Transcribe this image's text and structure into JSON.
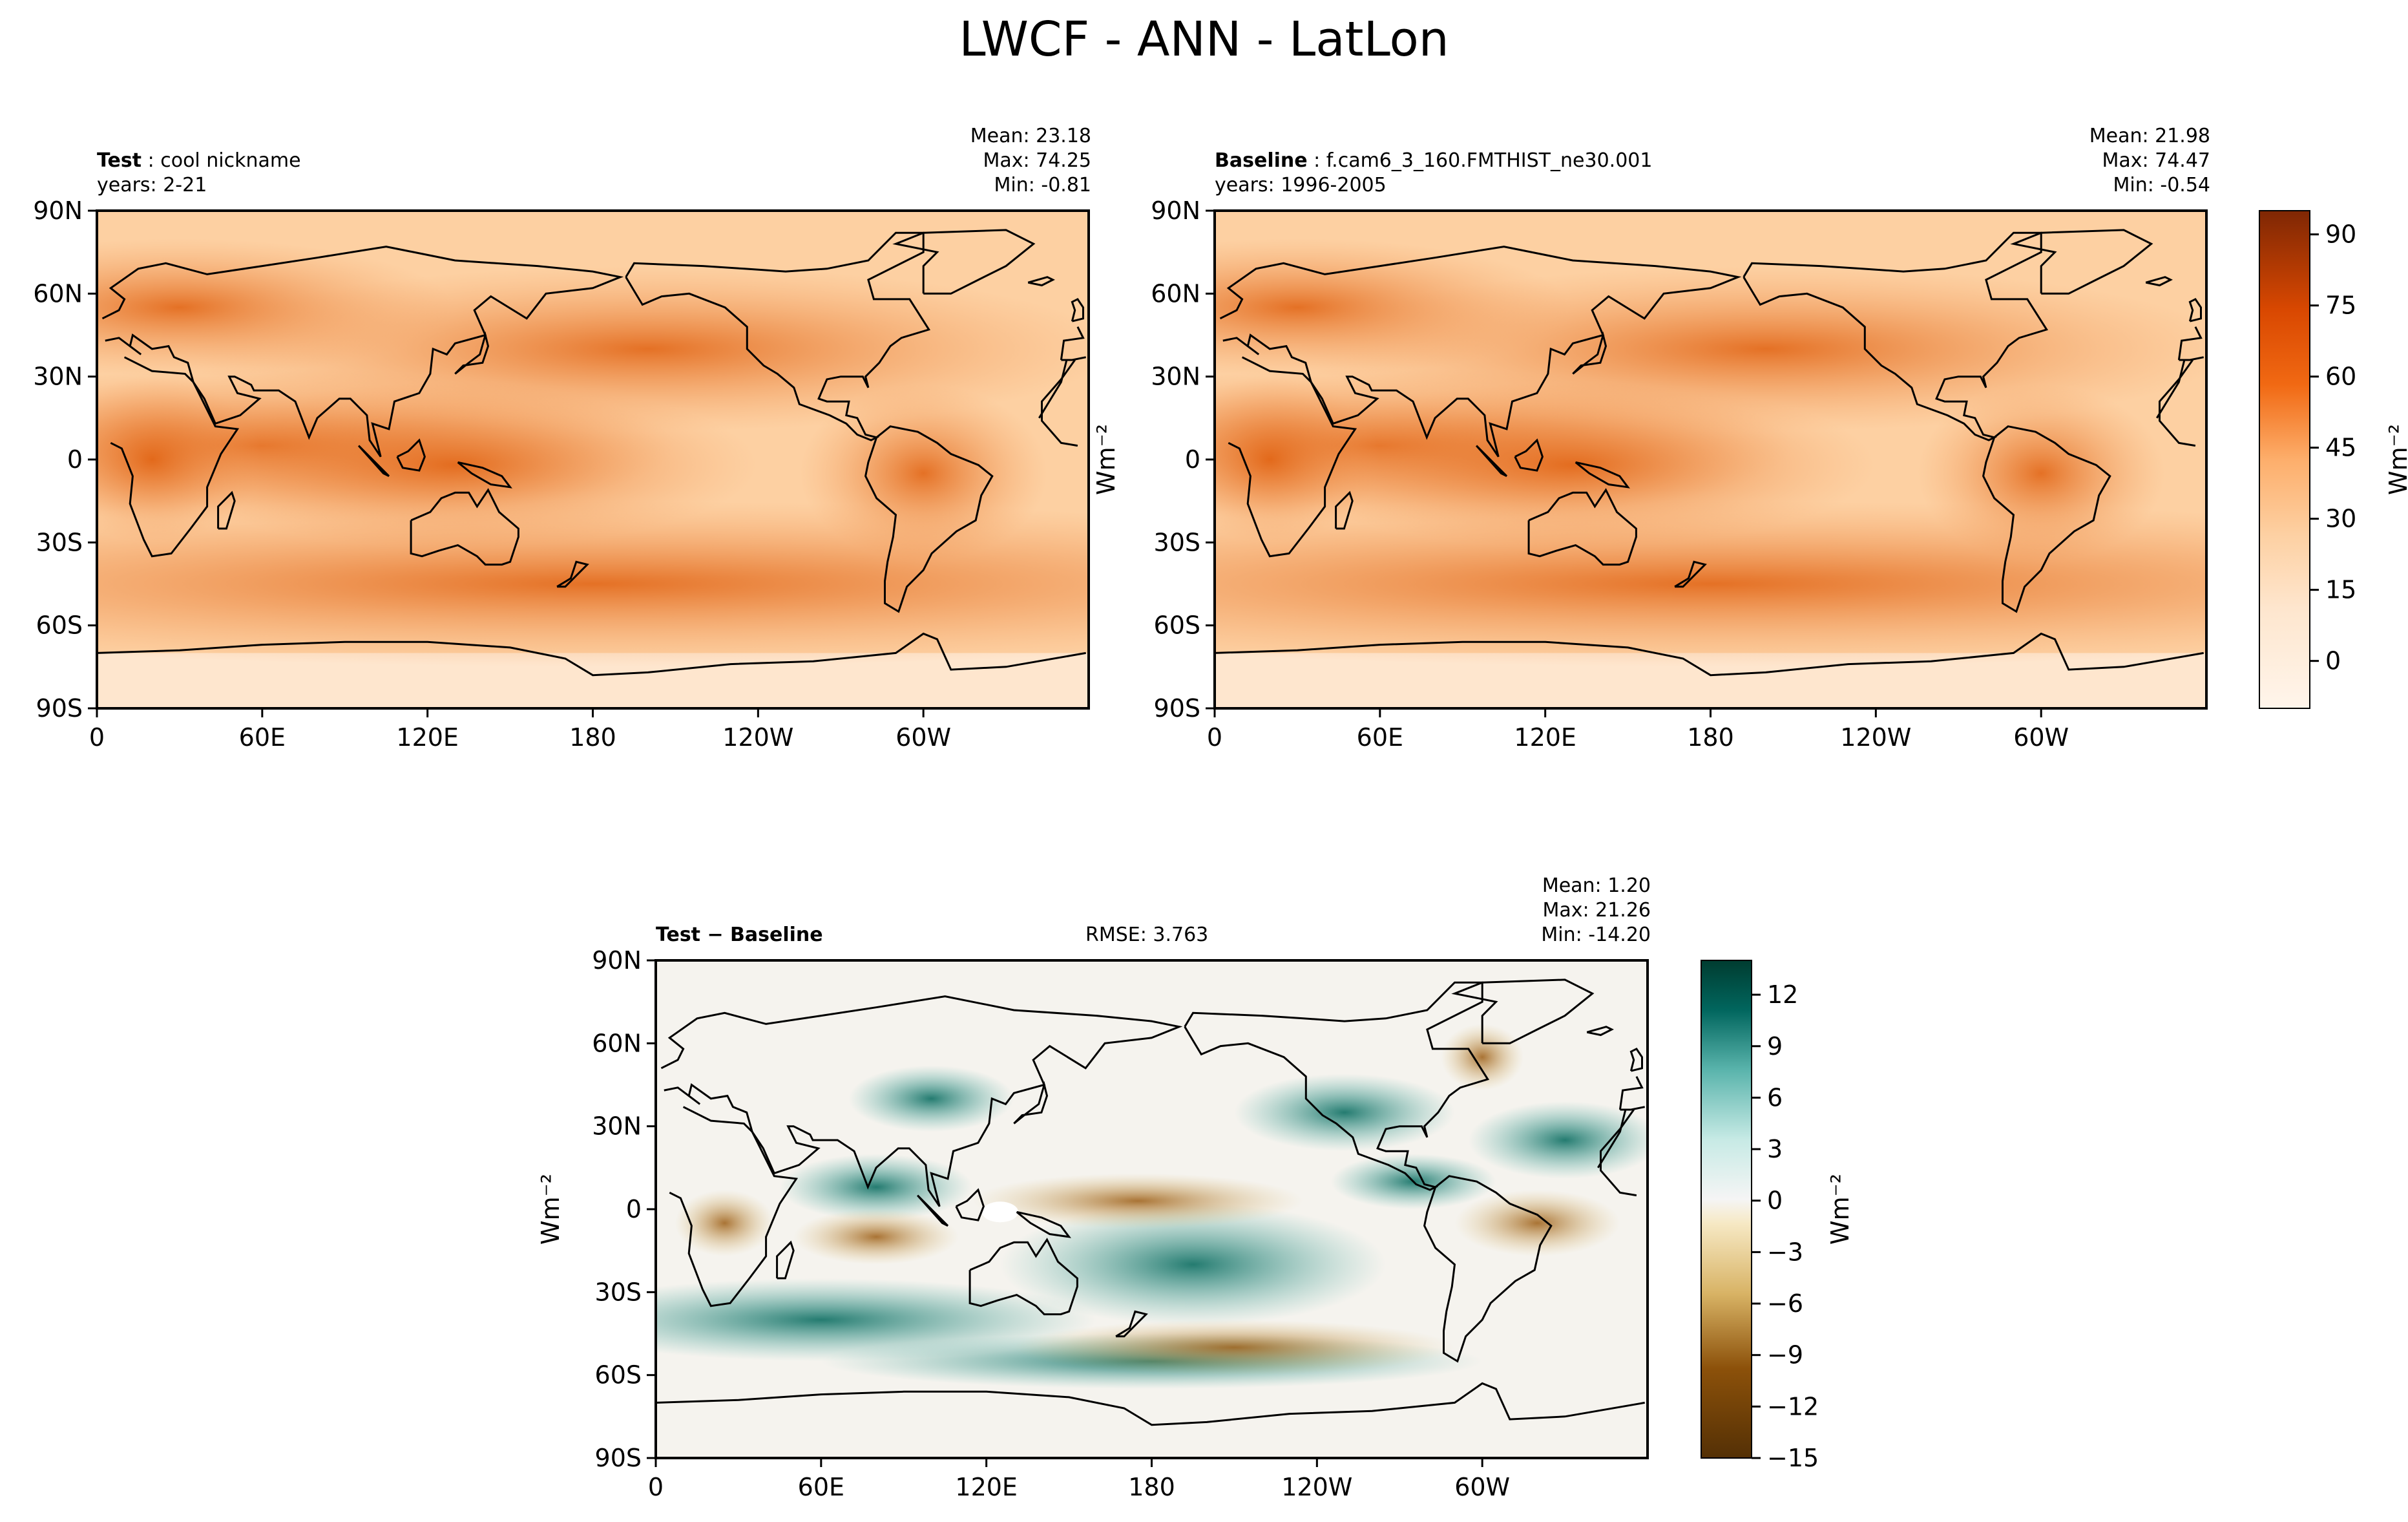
{
  "figure_title": "LWCF - ANN - LatLon",
  "chart_data": [
    {
      "type": "heatmap",
      "panel": "test",
      "label": "Test",
      "name": "cool nickname",
      "years": "years: 2-21",
      "stats": [
        "Mean: 23.18",
        "Max: 74.25",
        "Min: -0.81"
      ],
      "xticks": [
        "0",
        "60E",
        "120E",
        "180",
        "120W",
        "60W"
      ],
      "yticks": [
        "90N",
        "60N",
        "30N",
        "0",
        "30S",
        "60S",
        "90S"
      ],
      "xlim": [
        0,
        360
      ],
      "ylim": [
        -90,
        90
      ],
      "units": "Wm⁻²"
    },
    {
      "type": "heatmap",
      "panel": "baseline",
      "label": "Baseline",
      "name": "f.cam6_3_160.FMTHIST_ne30.001",
      "years": "years: 1996-2005",
      "stats": [
        "Mean: 21.98",
        "Max: 74.47",
        "Min: -0.54"
      ],
      "xticks": [
        "0",
        "60E",
        "120E",
        "180",
        "120W",
        "60W"
      ],
      "yticks": [
        "90N",
        "60N",
        "30N",
        "0",
        "30S",
        "60S",
        "90S"
      ],
      "xlim": [
        0,
        360
      ],
      "ylim": [
        -90,
        90
      ],
      "units": "Wm⁻²",
      "colorbar": {
        "ticks": [
          "90",
          "75",
          "60",
          "45",
          "30",
          "15",
          "0"
        ],
        "range": [
          -10,
          95
        ],
        "label": "Wm⁻²",
        "palette": "orange"
      }
    },
    {
      "type": "heatmap",
      "panel": "difference",
      "label": "Test − Baseline",
      "rmse": "RMSE: 3.763",
      "stats": [
        "Mean:  1.20",
        "Max: 21.26",
        "Min: -14.20"
      ],
      "xticks": [
        "0",
        "60E",
        "120E",
        "180",
        "120W",
        "60W"
      ],
      "yticks": [
        "90N",
        "60N",
        "30N",
        "0",
        "30S",
        "60S",
        "90S"
      ],
      "xlim": [
        0,
        360
      ],
      "ylim": [
        -90,
        90
      ],
      "units": "Wm⁻²",
      "colorbar": {
        "ticks": [
          "12",
          "9",
          "6",
          "3",
          "0",
          "−3",
          "−6",
          "−9",
          "−12",
          "−15"
        ],
        "range": [
          -15,
          14
        ],
        "label": "Wm⁻²",
        "palette": "brown-teal"
      }
    }
  ],
  "colors": {
    "orange_low": "#fff5eb",
    "orange_mid": "#fdbf86",
    "orange_high": "#d94701",
    "orange_top": "#7f2704",
    "diff_neg": "#543005",
    "diff_zero": "#f5f5f5",
    "diff_pos": "#003c30"
  }
}
